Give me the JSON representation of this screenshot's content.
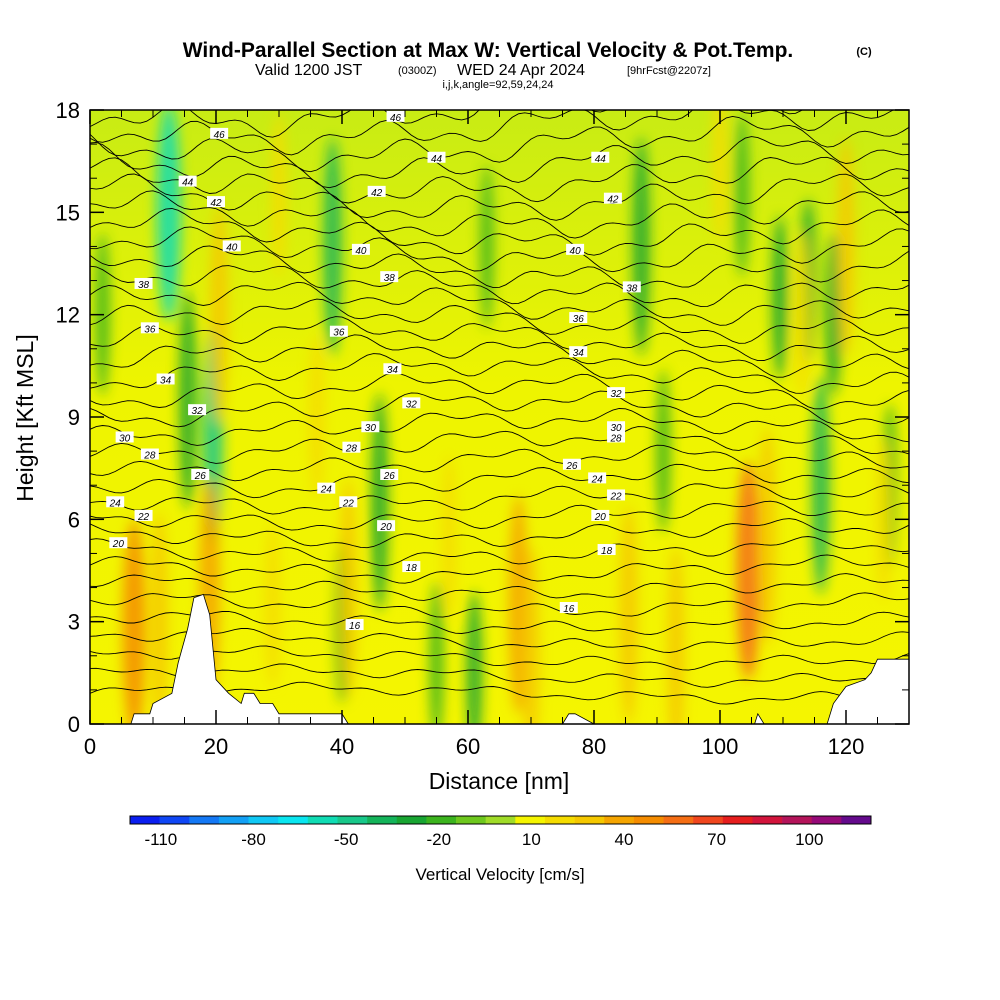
{
  "header": {
    "title": "Wind-Parallel Section at Max W: Vertical Velocity & Pot.Temp.",
    "copyright": "(C)",
    "valid_prefix": "Valid 1200 JST",
    "valid_utc": "(0300Z)",
    "valid_date": "WED 24 Apr 2024",
    "forecast": "[9hrFcst@2207z]",
    "indices": "i,j,k,angle=92,59,24,24"
  },
  "colors": {
    "background": "#ffffff",
    "terrain": "#ffffff",
    "base_field": "#f5f500",
    "contour": "#000000"
  },
  "chart_data": {
    "type": "heatmap",
    "xlabel": "Distance [nm]",
    "ylabel": "Height [Kft MSL]",
    "xlim": [
      0,
      130
    ],
    "ylim": [
      0,
      18
    ],
    "x_ticks": [
      "0",
      "20",
      "40",
      "60",
      "80",
      "100",
      "120"
    ],
    "y_ticks": [
      "0",
      "3",
      "6",
      "9",
      "12",
      "15",
      "18"
    ],
    "colorbar": {
      "label": "Vertical Velocity [cm/s]",
      "tick_labels": [
        "-110",
        "-80",
        "-50",
        "-20",
        "10",
        "40",
        "70",
        "100"
      ],
      "tick_values": [
        -110,
        -80,
        -50,
        -20,
        10,
        40,
        70,
        100
      ],
      "bin_edges": [
        -120,
        -110,
        -100,
        -90,
        -80,
        -70,
        -60,
        -50,
        -40,
        -30,
        -20,
        -10,
        0,
        10,
        20,
        30,
        40,
        50,
        60,
        70,
        80,
        90,
        100,
        110,
        120
      ],
      "colors": [
        "#0a1ef0",
        "#0f46f5",
        "#1478f5",
        "#12a0f5",
        "#10c8f5",
        "#0ae6f0",
        "#10dcb4",
        "#18c88a",
        "#14b45a",
        "#18a532",
        "#3cb41e",
        "#6ec81e",
        "#a0dc28",
        "#f5f500",
        "#f5dc00",
        "#f5c800",
        "#f5a500",
        "#f58c00",
        "#f56e14",
        "#f0461e",
        "#e61e1e",
        "#d2143c",
        "#b4145a",
        "#960a78",
        "#640a8c"
      ]
    },
    "terrain_profile": {
      "x": [
        0,
        6.5,
        7,
        9.5,
        10,
        13,
        14,
        15.5,
        16.5,
        18,
        19,
        20,
        22,
        24,
        24.5,
        26,
        27,
        29,
        30,
        35,
        40,
        41,
        43,
        45,
        47,
        49,
        52,
        56,
        60,
        64,
        68,
        72,
        75,
        76,
        77,
        80,
        85,
        90,
        95,
        100,
        105.5,
        106,
        107,
        112,
        117,
        118,
        120,
        123,
        124,
        125,
        130
      ],
      "z": [
        0,
        0,
        0.3,
        0.3,
        0.6,
        0.9,
        1.8,
        2.8,
        3.7,
        3.8,
        3.2,
        1.3,
        0.9,
        0.6,
        0.9,
        0.9,
        0.6,
        0.6,
        0.3,
        0.3,
        0.3,
        0,
        0,
        0,
        0,
        0,
        0,
        0,
        0,
        0,
        0,
        0,
        0,
        0.3,
        0.3,
        0,
        0,
        0,
        0,
        0,
        0,
        0.3,
        0,
        0,
        0,
        0.6,
        1.1,
        1.3,
        1.5,
        1.9,
        1.9
      ]
    },
    "theta_contours_K": [
      14,
      16,
      18,
      20,
      22,
      24,
      26,
      28,
      30,
      32,
      34,
      36,
      38,
      40,
      42,
      44,
      46,
      48
    ],
    "theta_contour_labels": [
      {
        "text": "16",
        "x": 42,
        "z": 2.9
      },
      {
        "text": "16",
        "x": 76,
        "z": 3.4
      },
      {
        "text": "18",
        "x": 51,
        "z": 4.6
      },
      {
        "text": "18",
        "x": 82,
        "z": 5.1
      },
      {
        "text": "20",
        "x": 4.5,
        "z": 5.3
      },
      {
        "text": "20",
        "x": 47,
        "z": 5.8
      },
      {
        "text": "20",
        "x": 81,
        "z": 6.1
      },
      {
        "text": "22",
        "x": 8.5,
        "z": 6.1
      },
      {
        "text": "22",
        "x": 41,
        "z": 6.5
      },
      {
        "text": "22",
        "x": 83.5,
        "z": 6.7
      },
      {
        "text": "24",
        "x": 4,
        "z": 6.5
      },
      {
        "text": "24",
        "x": 37.5,
        "z": 6.9
      },
      {
        "text": "24",
        "x": 80.5,
        "z": 7.2
      },
      {
        "text": "26",
        "x": 17.5,
        "z": 7.3
      },
      {
        "text": "26",
        "x": 47.5,
        "z": 7.3
      },
      {
        "text": "26",
        "x": 76.5,
        "z": 7.6
      },
      {
        "text": "28",
        "x": 9.5,
        "z": 7.9
      },
      {
        "text": "28",
        "x": 41.5,
        "z": 8.1
      },
      {
        "text": "28",
        "x": 83.5,
        "z": 8.4
      },
      {
        "text": "30",
        "x": 5.5,
        "z": 8.4
      },
      {
        "text": "30",
        "x": 44.5,
        "z": 8.7
      },
      {
        "text": "30",
        "x": 83.5,
        "z": 8.7
      },
      {
        "text": "32",
        "x": 17,
        "z": 9.2
      },
      {
        "text": "32",
        "x": 51,
        "z": 9.4
      },
      {
        "text": "32",
        "x": 83.5,
        "z": 9.7
      },
      {
        "text": "34",
        "x": 12,
        "z": 10.1
      },
      {
        "text": "34",
        "x": 48,
        "z": 10.4
      },
      {
        "text": "34",
        "x": 77.5,
        "z": 10.9
      },
      {
        "text": "36",
        "x": 9.5,
        "z": 11.6
      },
      {
        "text": "36",
        "x": 39.5,
        "z": 11.5
      },
      {
        "text": "36",
        "x": 77.5,
        "z": 11.9
      },
      {
        "text": "38",
        "x": 8.5,
        "z": 12.9
      },
      {
        "text": "38",
        "x": 47.5,
        "z": 13.1
      },
      {
        "text": "38",
        "x": 86,
        "z": 12.8
      },
      {
        "text": "40",
        "x": 22.5,
        "z": 14.0
      },
      {
        "text": "40",
        "x": 43,
        "z": 13.9
      },
      {
        "text": "40",
        "x": 77,
        "z": 13.9
      },
      {
        "text": "42",
        "x": 20,
        "z": 15.3
      },
      {
        "text": "42",
        "x": 45.5,
        "z": 15.6
      },
      {
        "text": "42",
        "x": 83,
        "z": 15.4
      },
      {
        "text": "44",
        "x": 15.5,
        "z": 15.9
      },
      {
        "text": "44",
        "x": 55,
        "z": 16.6
      },
      {
        "text": "44",
        "x": 81,
        "z": 16.6
      },
      {
        "text": "46",
        "x": 20.5,
        "z": 17.3
      },
      {
        "text": "46",
        "x": 48.5,
        "z": 17.8
      }
    ],
    "updrafts": [
      {
        "x": 7,
        "z": 2.8,
        "w": 55
      },
      {
        "x": 19,
        "z": 4.0,
        "w": 45
      },
      {
        "x": 20.5,
        "z": 12.0,
        "w": 35
      },
      {
        "x": 11,
        "z": 3.0,
        "w": 30
      },
      {
        "x": 29,
        "z": 3.5,
        "w": 25
      },
      {
        "x": 36,
        "z": 9.0,
        "w": 25
      },
      {
        "x": 41,
        "z": 4.0,
        "w": 30
      },
      {
        "x": 68,
        "z": 3.5,
        "w": 40
      },
      {
        "x": 70,
        "z": 2.0,
        "w": 30
      },
      {
        "x": 57,
        "z": 5.5,
        "w": 20
      },
      {
        "x": 85.5,
        "z": 3.2,
        "w": 35
      },
      {
        "x": 93,
        "z": 2.0,
        "w": 30
      },
      {
        "x": 104.5,
        "z": 4.5,
        "w": 60
      },
      {
        "x": 107.5,
        "z": 5.5,
        "w": 35
      },
      {
        "x": 120,
        "z": 14.0,
        "w": 30
      },
      {
        "x": 126,
        "z": 6.0,
        "w": 25
      },
      {
        "x": 113,
        "z": 12.0,
        "w": 25
      },
      {
        "x": 30,
        "z": 15.5,
        "w": 20
      },
      {
        "x": 100,
        "z": 16.5,
        "w": 20
      }
    ],
    "downdrafts": [
      {
        "x": 12.5,
        "z": 15.0,
        "w": -60
      },
      {
        "x": 15.5,
        "z": 9.5,
        "w": -30
      },
      {
        "x": 19.5,
        "z": 8.5,
        "w": -45
      },
      {
        "x": 2,
        "z": 12.0,
        "w": -20
      },
      {
        "x": 38.5,
        "z": 14.0,
        "w": -35
      },
      {
        "x": 46,
        "z": 6.5,
        "w": -30
      },
      {
        "x": 40,
        "z": 3.0,
        "w": -20
      },
      {
        "x": 61,
        "z": 1.5,
        "w": -25
      },
      {
        "x": 55,
        "z": 1.8,
        "w": -20
      },
      {
        "x": 63,
        "z": 14.0,
        "w": -15
      },
      {
        "x": 87.5,
        "z": 14.0,
        "w": -30
      },
      {
        "x": 91,
        "z": 8.0,
        "w": -20
      },
      {
        "x": 109.5,
        "z": 12.5,
        "w": -25
      },
      {
        "x": 114,
        "z": 13.0,
        "w": -25
      },
      {
        "x": 116,
        "z": 7.0,
        "w": -35
      },
      {
        "x": 118,
        "z": 12.0,
        "w": -25
      },
      {
        "x": 127,
        "z": 7.0,
        "w": -20
      },
      {
        "x": 103.5,
        "z": 15.5,
        "w": -20
      }
    ]
  }
}
